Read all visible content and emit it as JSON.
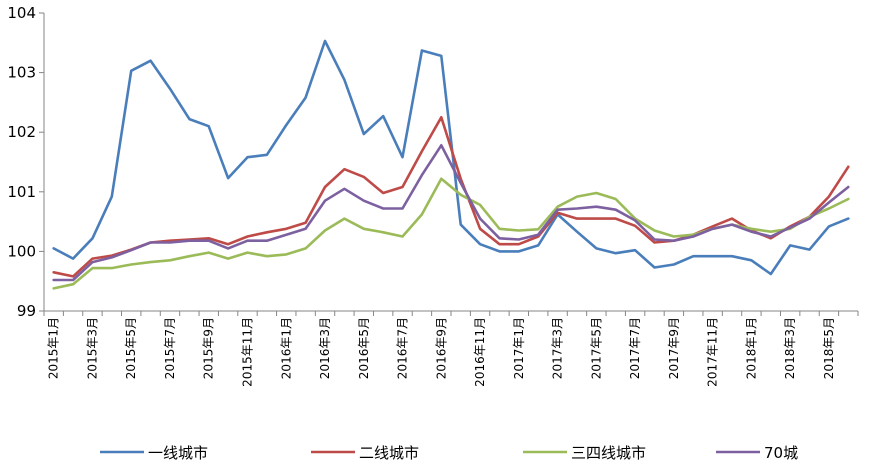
{
  "chart_data": {
    "type": "line",
    "title": "",
    "xlabel": "",
    "ylabel": "",
    "ylim": [
      99,
      104
    ],
    "yticks": [
      99,
      100,
      101,
      102,
      103,
      104
    ],
    "grid": false,
    "legend_position": "bottom",
    "x": [
      "2015年1月",
      "2015年2月",
      "2015年3月",
      "2015年4月",
      "2015年5月",
      "2015年6月",
      "2015年7月",
      "2015年8月",
      "2015年9月",
      "2015年10月",
      "2015年11月",
      "2015年12月",
      "2016年1月",
      "2016年2月",
      "2016年3月",
      "2016年4月",
      "2016年5月",
      "2016年6月",
      "2016年7月",
      "2016年8月",
      "2016年9月",
      "2016年10月",
      "2016年11月",
      "2016年12月",
      "2017年1月",
      "2017年2月",
      "2017年3月",
      "2017年4月",
      "2017年5月",
      "2017年6月",
      "2017年7月",
      "2017年8月",
      "2017年9月",
      "2017年10月",
      "2017年11月",
      "2017年12月",
      "2018年1月",
      "2018年2月",
      "2018年3月",
      "2018年4月",
      "2018年5月",
      "2018年6月"
    ],
    "xtick_labels": [
      "2015年1月",
      "2015年3月",
      "2015年5月",
      "2015年7月",
      "2015年9月",
      "2015年11月",
      "2016年1月",
      "2016年3月",
      "2016年5月",
      "2016年7月",
      "2016年9月",
      "2016年11月",
      "2017年1月",
      "2017年3月",
      "2017年5月",
      "2017年7月",
      "2017年9月",
      "2017年11月",
      "2018年1月",
      "2018年3月",
      "2018年5月"
    ],
    "series": [
      {
        "name": "一线城市",
        "color": "#4a7ebb",
        "values": [
          100.05,
          99.88,
          100.22,
          100.92,
          103.03,
          103.2,
          102.73,
          102.22,
          102.1,
          101.23,
          101.58,
          101.62,
          102.12,
          102.58,
          103.53,
          102.88,
          101.97,
          102.27,
          101.58,
          103.37,
          103.28,
          100.45,
          100.12,
          100.0,
          100.0,
          100.1,
          100.62,
          100.33,
          100.05,
          99.97,
          100.02,
          99.73,
          99.78,
          99.92,
          99.92,
          99.92,
          99.85,
          99.62,
          100.1,
          100.03,
          100.42,
          100.55
        ]
      },
      {
        "name": "二线城市",
        "color": "#be4b48",
        "values": [
          99.65,
          99.58,
          99.88,
          99.93,
          100.03,
          100.15,
          100.18,
          100.2,
          100.22,
          100.12,
          100.25,
          100.32,
          100.38,
          100.48,
          101.08,
          101.38,
          101.25,
          100.98,
          101.08,
          101.68,
          102.25,
          101.22,
          100.38,
          100.12,
          100.12,
          100.25,
          100.65,
          100.55,
          100.55,
          100.55,
          100.43,
          100.15,
          100.18,
          100.28,
          100.42,
          100.55,
          100.35,
          100.22,
          100.42,
          100.58,
          100.92,
          101.42
        ]
      },
      {
        "name": "三四线城市",
        "color": "#9bbb59",
        "values": [
          99.38,
          99.45,
          99.72,
          99.72,
          99.78,
          99.82,
          99.85,
          99.92,
          99.98,
          99.88,
          99.98,
          99.92,
          99.95,
          100.05,
          100.35,
          100.55,
          100.38,
          100.32,
          100.25,
          100.62,
          101.22,
          100.95,
          100.78,
          100.38,
          100.35,
          100.37,
          100.75,
          100.92,
          100.98,
          100.88,
          100.55,
          100.35,
          100.25,
          100.28,
          100.38,
          100.45,
          100.38,
          100.33,
          100.38,
          100.58,
          100.72,
          100.88
        ]
      },
      {
        "name": "70城",
        "color": "#7d60a0",
        "values": [
          99.52,
          99.52,
          99.82,
          99.9,
          100.02,
          100.15,
          100.15,
          100.18,
          100.18,
          100.05,
          100.18,
          100.18,
          100.28,
          100.38,
          100.85,
          101.05,
          100.85,
          100.72,
          100.72,
          101.28,
          101.78,
          101.15,
          100.55,
          100.22,
          100.2,
          100.28,
          100.7,
          100.72,
          100.75,
          100.7,
          100.52,
          100.2,
          100.18,
          100.25,
          100.38,
          100.45,
          100.33,
          100.25,
          100.4,
          100.55,
          100.82,
          101.08
        ]
      }
    ]
  }
}
